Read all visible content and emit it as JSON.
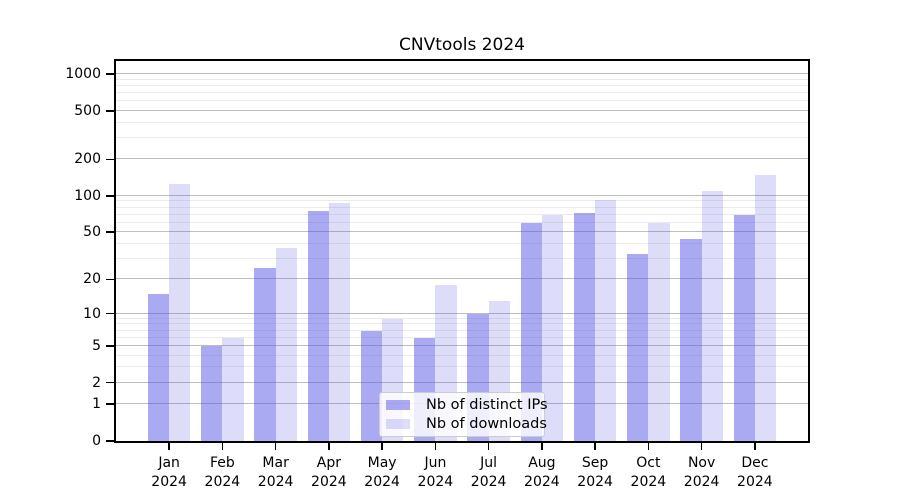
{
  "title": "CNVtools 2024",
  "chart_data": {
    "type": "bar",
    "title": "CNVtools 2024",
    "scale": "log1p",
    "grid": "on",
    "legend_position": "bottom-center",
    "categories": [
      "Jan",
      "Feb",
      "Mar",
      "Apr",
      "May",
      "Jun",
      "Jul",
      "Aug",
      "Sep",
      "Oct",
      "Nov",
      "Dec"
    ],
    "year": "2024",
    "series": [
      {
        "name": "Nb of distinct IPs",
        "color": "rgba(85,85,230,0.5)",
        "values": [
          15,
          5,
          25,
          75,
          7,
          6,
          10,
          60,
          72,
          33,
          44,
          70
        ]
      },
      {
        "name": "Nb of downloads",
        "color": "rgba(85,85,230,0.2)",
        "values": [
          125,
          6,
          37,
          88,
          9,
          18,
          13,
          70,
          92,
          60,
          110,
          150
        ]
      }
    ],
    "y_ticks": [
      0,
      1,
      2,
      5,
      10,
      20,
      50,
      100,
      200,
      500,
      1000
    ],
    "y_minor_gridlines": [
      3,
      4,
      6,
      7,
      8,
      9,
      30,
      40,
      60,
      70,
      80,
      90,
      300,
      400,
      600,
      700,
      800,
      900
    ],
    "ylim": [
      0,
      1280
    ],
    "xlabel": "",
    "ylabel": ""
  },
  "colors": {
    "major_gridline": "#bdbdbd",
    "minor_gridline": "#ebebeb",
    "axis": "#000000",
    "legend_border": "#cccccc",
    "legend_background": "rgba(255,255,255,0.8)"
  }
}
